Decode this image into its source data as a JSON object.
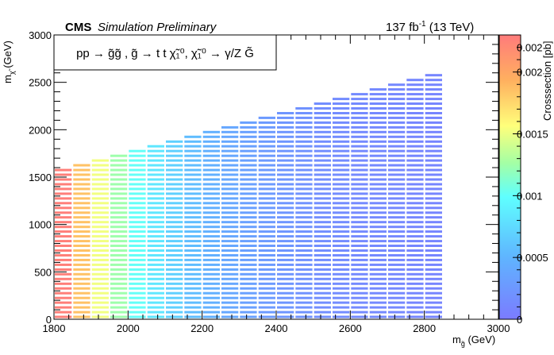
{
  "chart_data": {
    "type": "heatmap",
    "header": {
      "experiment": "CMS",
      "status": "Simulation Preliminary",
      "luminosity": "137 fb",
      "luminosity_exp": "-1",
      "energy": " (13 TeV)"
    },
    "process_label": "pp → g̃g̃ ,  g̃ → t t χ̃₁⁰, χ̃₁⁰ → γ/Z G̃",
    "xlabel_main": "m",
    "xlabel_sub": "g̃",
    "xlabel_unit": " (GeV)",
    "ylabel_main": "m",
    "ylabel_sub": "χ̃",
    "ylabel_unit": " (GeV)",
    "zlabel": "Crosssection [pb]",
    "xlim": [
      1800,
      3000
    ],
    "ylim": [
      0,
      3000
    ],
    "zlim": [
      0,
      0.0023
    ],
    "x_ticks": [
      1800,
      2000,
      2200,
      2400,
      2600,
      2800,
      3000
    ],
    "x_tick_labels": [
      "1800",
      "2000",
      "2200",
      "2400",
      "2600",
      "2800",
      "3000"
    ],
    "y_ticks": [
      0,
      500,
      1000,
      1500,
      2000,
      2500,
      3000
    ],
    "y_tick_labels": [
      "0",
      "500",
      "1000",
      "1500",
      "2000",
      "2500",
      "3000"
    ],
    "z_ticks": [
      0,
      0.0005,
      0.001,
      0.0015,
      0.002
    ],
    "z_tick_labels": [
      "0",
      "0.0005",
      "0.001",
      "0.0015",
      "0.002"
    ],
    "z_tick_top": 0.0022,
    "z_tick_top_label": "0.002",
    "gluino_mass_points": [
      1800,
      1850,
      1900,
      1950,
      2000,
      2050,
      2100,
      2150,
      2200,
      2250,
      2300,
      2350,
      2400,
      2450,
      2500,
      2550,
      2600,
      2650,
      2700,
      2750,
      2800
    ],
    "neutralino_mass_max": [
      1600,
      1650,
      1700,
      1750,
      1800,
      1850,
      1900,
      1950,
      2000,
      2050,
      2100,
      2150,
      2200,
      2250,
      2300,
      2350,
      2400,
      2450,
      2500,
      2550,
      2600
    ],
    "neutralino_mass_step": 50,
    "crosssection_pb": [
      0.00227,
      0.00185,
      0.00152,
      0.00124,
      0.00101,
      0.00083,
      0.00068,
      0.00056,
      0.00046,
      0.00038,
      0.00032,
      0.00027,
      0.00023,
      0.0002,
      0.00017,
      0.00015,
      0.00013,
      0.00012,
      0.00011,
      0.0001,
      9e-05
    ]
  }
}
